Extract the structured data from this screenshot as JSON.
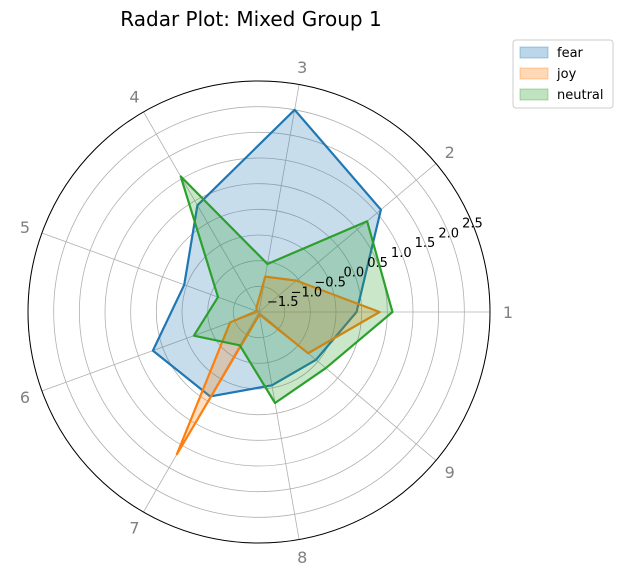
{
  "chart_data": {
    "type": "radar",
    "title": "Radar Plot: Mixed Group 1",
    "categories": [
      "1",
      "2",
      "3",
      "4",
      "5",
      "6",
      "7",
      "8",
      "9"
    ],
    "radial_ticks": [
      "−1.5",
      "−1.0",
      "−0.5",
      "0.0",
      "0.5",
      "1.0",
      "1.5",
      "2.0",
      "2.5"
    ],
    "rlim": [
      -2.0,
      2.5
    ],
    "grid": true,
    "legend_position": "top-right, outside plot",
    "series": [
      {
        "name": "fear",
        "color": "#1f77b4",
        "values": [
          -0.1,
          1.1,
          2.0,
          0.4,
          -0.45,
          0.2,
          -0.1,
          -0.55,
          -0.55
        ],
        "fill_opacity": 0.25
      },
      {
        "name": "joy",
        "color": "#ff7f0e",
        "values": [
          0.35,
          -1.05,
          -1.3,
          -1.9,
          -1.95,
          -1.4,
          1.2,
          -1.95,
          -0.75
        ],
        "fill_opacity": 0.25
      },
      {
        "name": "neutral",
        "color": "#2ca02c",
        "values": [
          0.6,
          0.75,
          -1.05,
          1.05,
          -1.15,
          -0.65,
          -1.25,
          -0.2,
          -0.3
        ],
        "fill_opacity": 0.25
      }
    ]
  }
}
